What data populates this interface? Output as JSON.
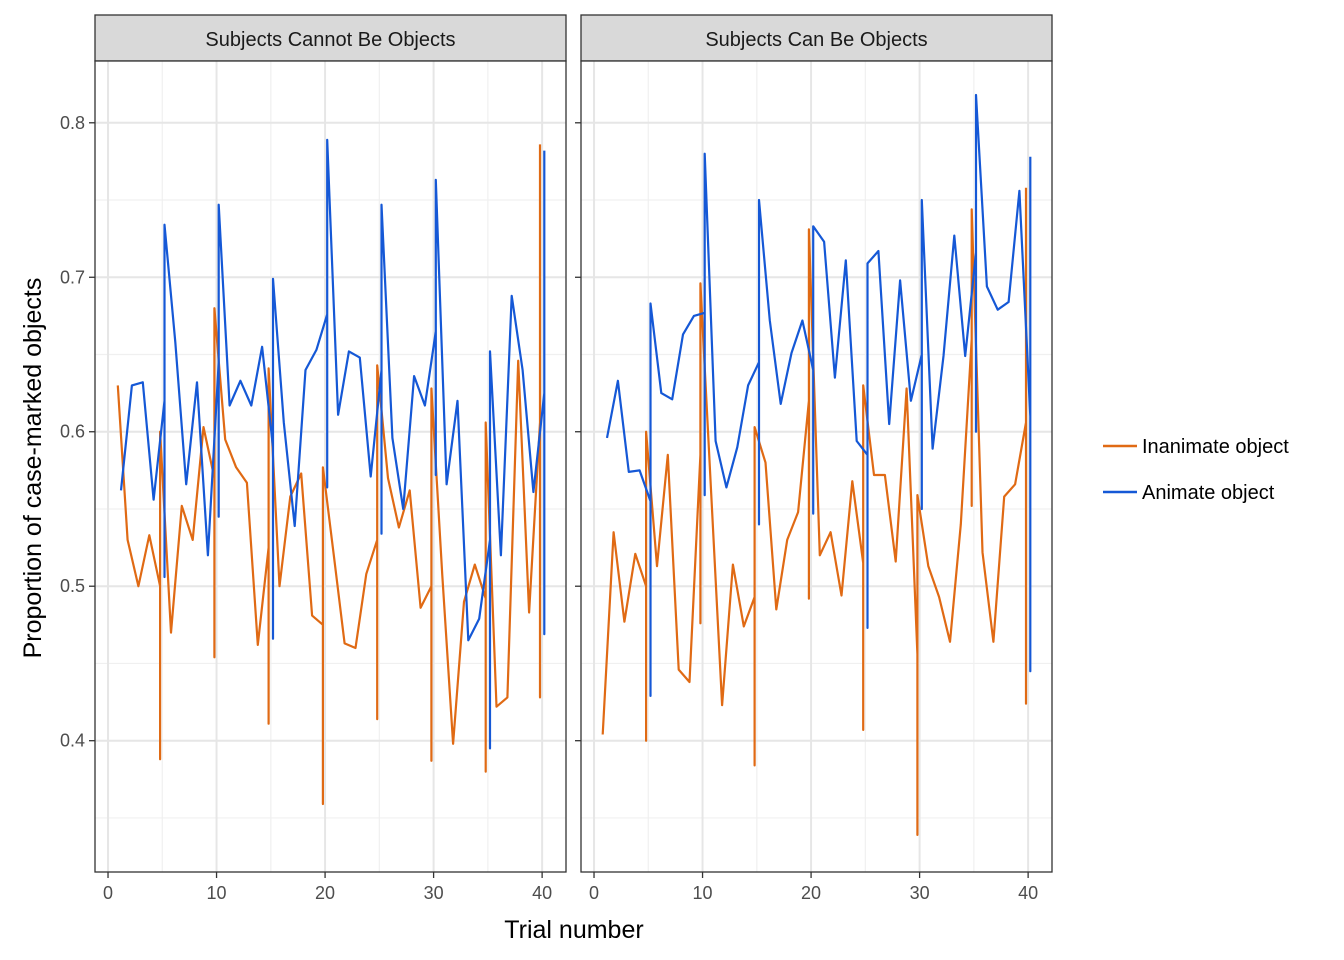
{
  "chart_data": {
    "type": "line",
    "xlabel": "Trial number",
    "ylabel": "Proportion of case-marked objects",
    "xlim": [
      -1.2,
      42.2
    ],
    "ylim": [
      0.315,
      0.84
    ],
    "x_ticks": [
      0,
      10,
      20,
      30,
      40
    ],
    "x_tick_labels": [
      "0",
      "10",
      "20",
      "30",
      "40"
    ],
    "y_ticks": [
      0.4,
      0.5,
      0.6,
      0.7,
      0.8
    ],
    "y_tick_labels": [
      "0.4",
      "0.5",
      "0.6",
      "0.7",
      "0.8"
    ],
    "grid": true,
    "legend": {
      "position": "right",
      "entries": [
        {
          "label": "Inanimate object",
          "color": "#e06a14"
        },
        {
          "label": "Animate object",
          "color": "#1558d6"
        }
      ]
    },
    "colors": {
      "inanimate": "#e06a14",
      "animate": "#1558d6"
    },
    "facets": [
      {
        "title": "Subjects Cannot Be Objects",
        "series": [
          {
            "key": "inanimate",
            "color": "#e06a14",
            "points": [
              [
                0.9,
                0.63
              ],
              [
                1.8,
                0.53
              ],
              [
                2.8,
                0.5
              ],
              [
                3.8,
                0.533
              ],
              [
                4.8,
                0.5
              ],
              [
                4.8,
                0.388
              ],
              [
                4.8,
                0.6
              ],
              [
                5.8,
                0.47
              ],
              [
                6.8,
                0.552
              ],
              [
                7.8,
                0.53
              ],
              [
                8.8,
                0.603
              ],
              [
                9.8,
                0.57
              ],
              [
                9.8,
                0.454
              ],
              [
                9.8,
                0.68
              ],
              [
                10.8,
                0.595
              ],
              [
                11.8,
                0.577
              ],
              [
                12.8,
                0.567
              ],
              [
                13.8,
                0.462
              ],
              [
                14.8,
                0.525
              ],
              [
                14.8,
                0.411
              ],
              [
                14.8,
                0.641
              ],
              [
                15.8,
                0.5
              ],
              [
                16.8,
                0.558
              ],
              [
                17.8,
                0.573
              ],
              [
                18.8,
                0.481
              ],
              [
                19.8,
                0.475
              ],
              [
                19.8,
                0.359
              ],
              [
                19.8,
                0.577
              ],
              [
                20.8,
                0.52
              ],
              [
                21.8,
                0.463
              ],
              [
                22.8,
                0.46
              ],
              [
                23.8,
                0.508
              ],
              [
                24.8,
                0.53
              ],
              [
                24.8,
                0.414
              ],
              [
                24.8,
                0.643
              ],
              [
                25.8,
                0.57
              ],
              [
                26.8,
                0.538
              ],
              [
                27.8,
                0.562
              ],
              [
                28.8,
                0.486
              ],
              [
                29.8,
                0.5
              ],
              [
                29.8,
                0.387
              ],
              [
                29.8,
                0.628
              ],
              [
                30.8,
                0.507
              ],
              [
                31.8,
                0.398
              ],
              [
                32.8,
                0.49
              ],
              [
                33.8,
                0.514
              ],
              [
                34.8,
                0.492
              ],
              [
                34.8,
                0.38
              ],
              [
                34.8,
                0.606
              ],
              [
                35.8,
                0.422
              ],
              [
                36.8,
                0.428
              ],
              [
                37.8,
                0.646
              ],
              [
                38.8,
                0.483
              ],
              [
                39.8,
                0.606
              ],
              [
                39.8,
                0.428
              ],
              [
                39.8,
                0.786
              ]
            ]
          },
          {
            "key": "animate",
            "color": "#1558d6",
            "points": [
              [
                1.2,
                0.562
              ],
              [
                2.2,
                0.63
              ],
              [
                3.2,
                0.632
              ],
              [
                4.2,
                0.556
              ],
              [
                5.2,
                0.62
              ],
              [
                5.2,
                0.506
              ],
              [
                5.2,
                0.734
              ],
              [
                6.2,
                0.658
              ],
              [
                7.2,
                0.566
              ],
              [
                8.2,
                0.632
              ],
              [
                9.2,
                0.52
              ],
              [
                10.2,
                0.645
              ],
              [
                10.2,
                0.545
              ],
              [
                10.2,
                0.747
              ],
              [
                11.2,
                0.617
              ],
              [
                12.2,
                0.633
              ],
              [
                13.2,
                0.617
              ],
              [
                14.2,
                0.655
              ],
              [
                15.2,
                0.59
              ],
              [
                15.2,
                0.466
              ],
              [
                15.2,
                0.699
              ],
              [
                16.2,
                0.606
              ],
              [
                17.2,
                0.539
              ],
              [
                18.2,
                0.64
              ],
              [
                19.2,
                0.653
              ],
              [
                20.2,
                0.676
              ],
              [
                20.2,
                0.564
              ],
              [
                20.2,
                0.789
              ],
              [
                21.2,
                0.611
              ],
              [
                22.2,
                0.652
              ],
              [
                23.2,
                0.648
              ],
              [
                24.2,
                0.571
              ],
              [
                25.2,
                0.64
              ],
              [
                25.2,
                0.534
              ],
              [
                25.2,
                0.747
              ],
              [
                26.2,
                0.596
              ],
              [
                27.2,
                0.55
              ],
              [
                28.2,
                0.636
              ],
              [
                29.2,
                0.617
              ],
              [
                30.2,
                0.665
              ],
              [
                30.2,
                0.572
              ],
              [
                30.2,
                0.763
              ],
              [
                31.2,
                0.566
              ],
              [
                32.2,
                0.62
              ],
              [
                33.2,
                0.465
              ],
              [
                34.2,
                0.479
              ],
              [
                35.2,
                0.53
              ],
              [
                35.2,
                0.395
              ],
              [
                35.2,
                0.652
              ],
              [
                36.2,
                0.52
              ],
              [
                37.2,
                0.688
              ],
              [
                38.2,
                0.64
              ],
              [
                39.2,
                0.561
              ],
              [
                40.2,
                0.625
              ],
              [
                40.2,
                0.469
              ],
              [
                40.2,
                0.782
              ]
            ]
          }
        ]
      },
      {
        "title": "Subjects Can Be Objects",
        "series": [
          {
            "key": "inanimate",
            "color": "#e06a14",
            "points": [
              [
                0.8,
                0.404
              ],
              [
                1.8,
                0.535
              ],
              [
                2.8,
                0.477
              ],
              [
                3.8,
                0.521
              ],
              [
                4.8,
                0.5
              ],
              [
                4.8,
                0.4
              ],
              [
                4.8,
                0.6
              ],
              [
                5.8,
                0.513
              ],
              [
                6.8,
                0.585
              ],
              [
                7.8,
                0.446
              ],
              [
                8.8,
                0.438
              ],
              [
                9.8,
                0.585
              ],
              [
                9.8,
                0.476
              ],
              [
                9.8,
                0.696
              ],
              [
                10.8,
                0.56
              ],
              [
                11.8,
                0.423
              ],
              [
                12.8,
                0.514
              ],
              [
                13.8,
                0.474
              ],
              [
                14.8,
                0.493
              ],
              [
                14.8,
                0.384
              ],
              [
                14.8,
                0.603
              ],
              [
                15.8,
                0.58
              ],
              [
                16.8,
                0.485
              ],
              [
                17.8,
                0.53
              ],
              [
                18.8,
                0.548
              ],
              [
                19.8,
                0.62
              ],
              [
                19.8,
                0.492
              ],
              [
                19.8,
                0.731
              ],
              [
                20.8,
                0.52
              ],
              [
                21.8,
                0.535
              ],
              [
                22.8,
                0.494
              ],
              [
                23.8,
                0.568
              ],
              [
                24.8,
                0.515
              ],
              [
                24.8,
                0.407
              ],
              [
                24.8,
                0.63
              ],
              [
                25.8,
                0.572
              ],
              [
                26.8,
                0.572
              ],
              [
                27.8,
                0.516
              ],
              [
                28.8,
                0.628
              ],
              [
                29.8,
                0.456
              ],
              [
                29.8,
                0.339
              ],
              [
                29.8,
                0.559
              ],
              [
                30.8,
                0.513
              ],
              [
                31.8,
                0.493
              ],
              [
                32.8,
                0.464
              ],
              [
                33.8,
                0.54
              ],
              [
                34.8,
                0.66
              ],
              [
                34.8,
                0.552
              ],
              [
                34.8,
                0.744
              ],
              [
                35.8,
                0.522
              ],
              [
                36.8,
                0.464
              ],
              [
                37.8,
                0.558
              ],
              [
                38.8,
                0.566
              ],
              [
                39.8,
                0.606
              ],
              [
                39.8,
                0.424
              ],
              [
                39.8,
                0.758
              ]
            ]
          },
          {
            "key": "animate",
            "color": "#1558d6",
            "points": [
              [
                1.2,
                0.596
              ],
              [
                2.2,
                0.633
              ],
              [
                3.2,
                0.574
              ],
              [
                4.2,
                0.575
              ],
              [
                5.2,
                0.555
              ],
              [
                5.2,
                0.429
              ],
              [
                5.2,
                0.683
              ],
              [
                6.2,
                0.625
              ],
              [
                7.2,
                0.621
              ],
              [
                8.2,
                0.663
              ],
              [
                9.2,
                0.675
              ],
              [
                10.2,
                0.677
              ],
              [
                10.2,
                0.559
              ],
              [
                10.2,
                0.78
              ],
              [
                11.2,
                0.594
              ],
              [
                12.2,
                0.564
              ],
              [
                13.2,
                0.59
              ],
              [
                14.2,
                0.63
              ],
              [
                15.2,
                0.645
              ],
              [
                15.2,
                0.54
              ],
              [
                15.2,
                0.75
              ],
              [
                16.2,
                0.672
              ],
              [
                17.2,
                0.618
              ],
              [
                18.2,
                0.651
              ],
              [
                19.2,
                0.672
              ],
              [
                20.2,
                0.64
              ],
              [
                20.2,
                0.547
              ],
              [
                20.2,
                0.733
              ],
              [
                21.2,
                0.723
              ],
              [
                22.2,
                0.635
              ],
              [
                23.2,
                0.711
              ],
              [
                24.2,
                0.594
              ],
              [
                25.2,
                0.585
              ],
              [
                25.2,
                0.473
              ],
              [
                25.2,
                0.709
              ],
              [
                26.2,
                0.717
              ],
              [
                27.2,
                0.605
              ],
              [
                28.2,
                0.698
              ],
              [
                29.2,
                0.62
              ],
              [
                30.2,
                0.65
              ],
              [
                30.2,
                0.55
              ],
              [
                30.2,
                0.75
              ],
              [
                31.2,
                0.589
              ],
              [
                32.2,
                0.649
              ],
              [
                33.2,
                0.727
              ],
              [
                34.2,
                0.649
              ],
              [
                35.2,
                0.716
              ],
              [
                35.2,
                0.6
              ],
              [
                35.2,
                0.818
              ],
              [
                36.2,
                0.694
              ],
              [
                37.2,
                0.679
              ],
              [
                38.2,
                0.684
              ],
              [
                39.2,
                0.756
              ],
              [
                40.2,
                0.61
              ],
              [
                40.2,
                0.445
              ],
              [
                40.2,
                0.778
              ]
            ]
          }
        ]
      }
    ]
  }
}
